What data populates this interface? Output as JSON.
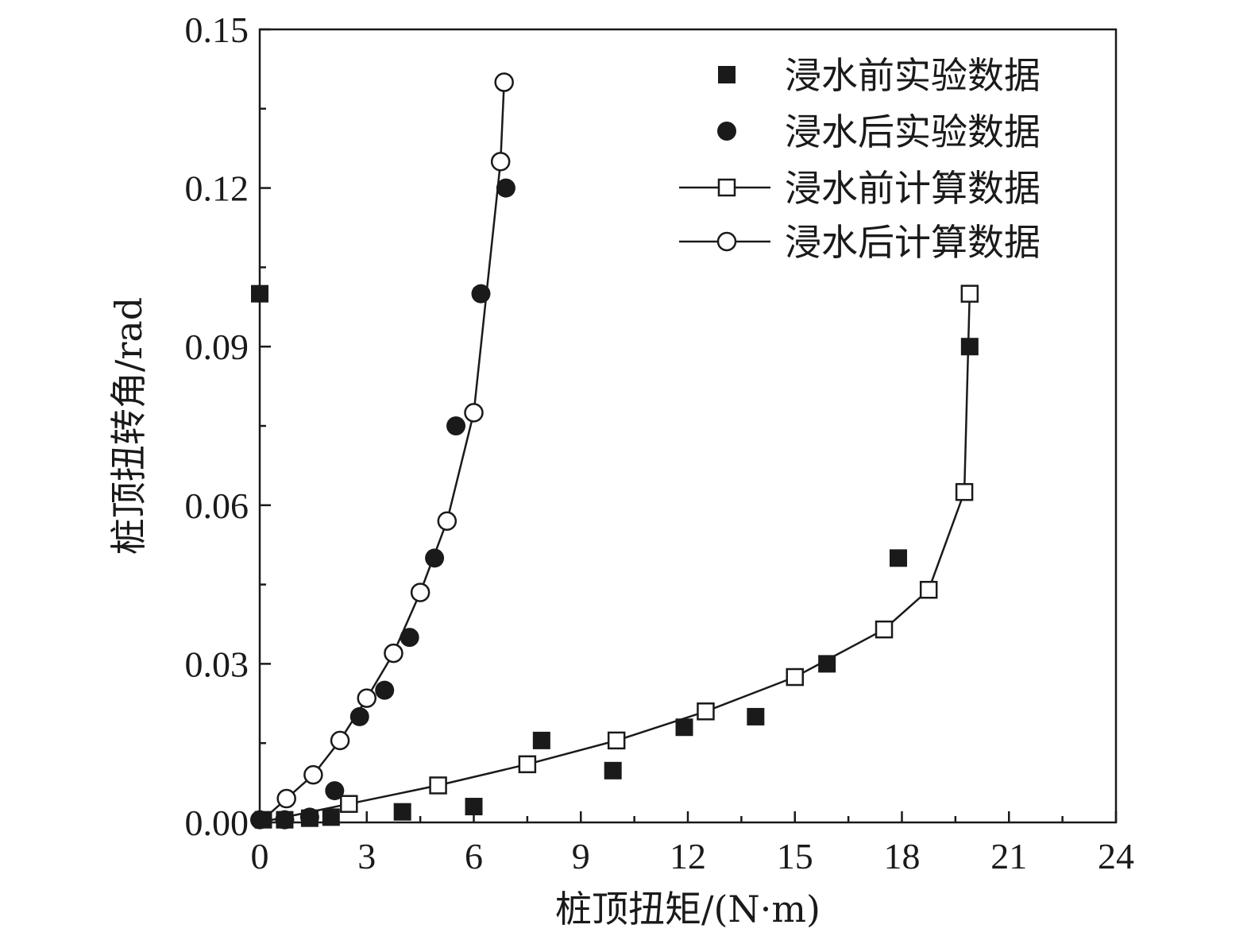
{
  "chart_data": {
    "type": "scatter",
    "xlabel": "桩顶扭矩/(N·m)",
    "ylabel": "桩顶扭转角/rad",
    "xlim": [
      0,
      24
    ],
    "ylim": [
      0,
      0.15
    ],
    "xticks": [
      "0",
      "3",
      "6",
      "9",
      "12",
      "15",
      "18",
      "21",
      "24"
    ],
    "yticks": [
      "0.00",
      "0.03",
      "0.06",
      "0.09",
      "0.12",
      "0.15"
    ],
    "grid": false,
    "legend_position": "top-right",
    "series": [
      {
        "name": "浸水前实验数据",
        "kind": "markers",
        "marker": "filled-square",
        "points": [
          [
            0.1,
            0.0005
          ],
          [
            0.7,
            0.0005
          ],
          [
            1.4,
            0.0008
          ],
          [
            2.0,
            0.001
          ],
          [
            4.0,
            0.002
          ],
          [
            6.0,
            0.003
          ],
          [
            7.9,
            0.0155
          ],
          [
            9.9,
            0.0098
          ],
          [
            11.9,
            0.018
          ],
          [
            13.9,
            0.02
          ],
          [
            15.9,
            0.03
          ],
          [
            17.9,
            0.05
          ],
          [
            19.9,
            0.09
          ],
          [
            0.0,
            0.1
          ]
        ]
      },
      {
        "name": "浸水后实验数据",
        "kind": "markers",
        "marker": "filled-circle",
        "points": [
          [
            0.0,
            0.0005
          ],
          [
            0.7,
            0.0005
          ],
          [
            1.4,
            0.001
          ],
          [
            2.1,
            0.006
          ],
          [
            2.8,
            0.02
          ],
          [
            3.5,
            0.025
          ],
          [
            4.2,
            0.035
          ],
          [
            4.9,
            0.05
          ],
          [
            5.5,
            0.075
          ],
          [
            6.2,
            0.1
          ],
          [
            6.9,
            0.12
          ]
        ]
      },
      {
        "name": "浸水前计算数据",
        "kind": "line-markers",
        "marker": "open-square",
        "points": [
          [
            0,
            0
          ],
          [
            2.5,
            0.0035
          ],
          [
            5.0,
            0.007
          ],
          [
            7.5,
            0.011
          ],
          [
            10.0,
            0.0155
          ],
          [
            12.5,
            0.021
          ],
          [
            15.0,
            0.0275
          ],
          [
            17.5,
            0.0365
          ],
          [
            18.75,
            0.044
          ],
          [
            19.75,
            0.0625
          ],
          [
            19.9,
            0.1
          ]
        ]
      },
      {
        "name": "浸水后计算数据",
        "kind": "line-markers",
        "marker": "open-circle",
        "points": [
          [
            0,
            0
          ],
          [
            0.75,
            0.0045
          ],
          [
            1.5,
            0.009
          ],
          [
            2.25,
            0.0155
          ],
          [
            3.0,
            0.0235
          ],
          [
            3.75,
            0.032
          ],
          [
            4.5,
            0.0435
          ],
          [
            5.25,
            0.057
          ],
          [
            6.0,
            0.0775
          ],
          [
            6.75,
            0.125
          ],
          [
            6.85,
            0.14
          ]
        ]
      }
    ]
  }
}
